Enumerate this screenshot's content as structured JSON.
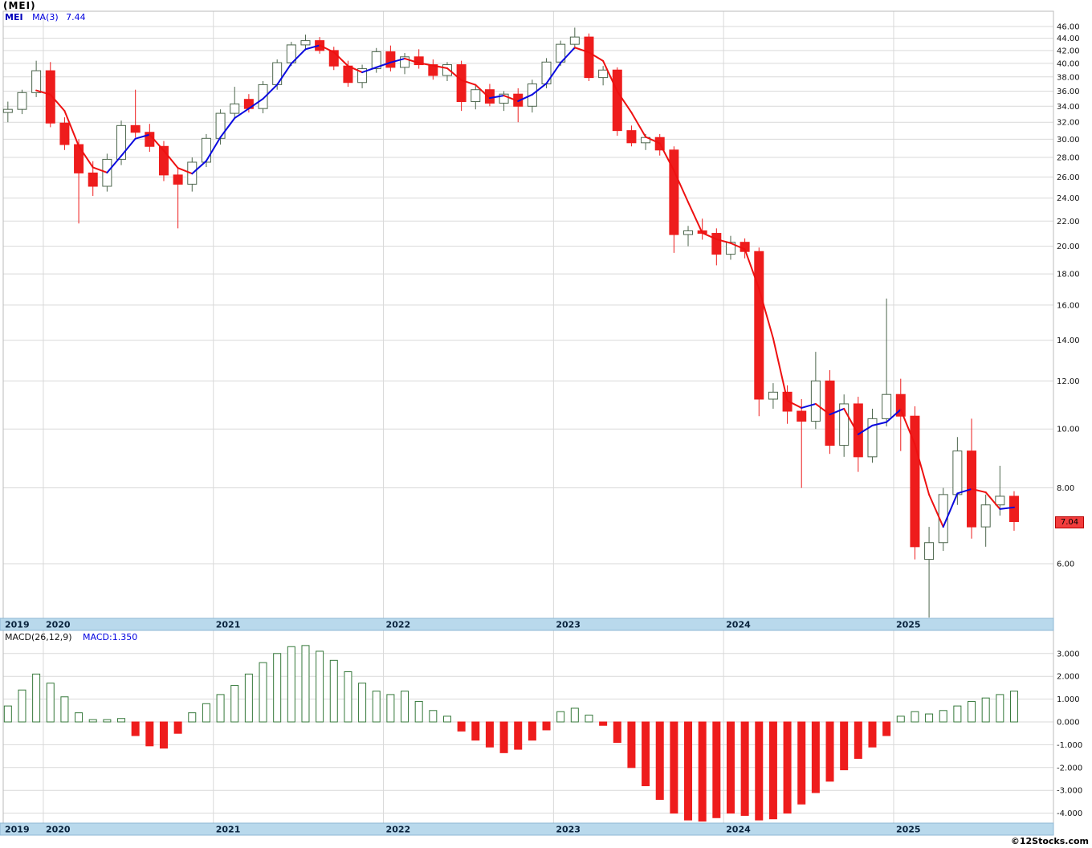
{
  "header": {
    "title": "(MEI)",
    "symbol_label": "MEI",
    "ma_label": "MA(3)",
    "ma_value": "7.44"
  },
  "macd_header": {
    "label": "MACD(26,12,9)",
    "value": "MACD:1.350"
  },
  "footer": {
    "watermark": "©12Stocks.com"
  },
  "chart_data": {
    "type": "candlestick",
    "symbol": "MEI",
    "interval": "monthly",
    "current_price": "7.04",
    "ma_period": 3,
    "price_axis": {
      "scale": "log",
      "tick_labels": [
        "46.00",
        "44.00",
        "42.00",
        "40.00",
        "38.00",
        "36.00",
        "34.00",
        "32.00",
        "30.00",
        "28.00",
        "26.00",
        "24.00",
        "22.00",
        "20.00",
        "18.00",
        "16.00",
        "14.00",
        "12.00",
        "10.00",
        "8.00",
        "6.00"
      ]
    },
    "years": [
      {
        "label": "2019",
        "start": 0
      },
      {
        "label": "2020",
        "start": 3
      },
      {
        "label": "2021",
        "start": 15
      },
      {
        "label": "2022",
        "start": 27
      },
      {
        "label": "2023",
        "start": 39
      },
      {
        "label": "2024",
        "start": 51
      },
      {
        "label": "2025",
        "start": 63
      }
    ],
    "candles": [
      [
        33.2,
        34.6,
        32.0,
        33.6
      ],
      [
        33.6,
        36.2,
        33.0,
        35.8
      ],
      [
        35.8,
        40.4,
        35.2,
        38.9
      ],
      [
        38.9,
        40.2,
        31.4,
        31.9
      ],
      [
        31.9,
        32.6,
        28.8,
        29.4
      ],
      [
        29.4,
        30.0,
        21.8,
        26.4
      ],
      [
        26.4,
        27.6,
        24.2,
        25.1
      ],
      [
        25.1,
        28.4,
        24.6,
        27.8
      ],
      [
        27.8,
        32.2,
        27.2,
        31.6
      ],
      [
        31.6,
        36.2,
        30.2,
        30.8
      ],
      [
        30.8,
        31.8,
        28.6,
        29.2
      ],
      [
        29.2,
        29.8,
        25.6,
        26.2
      ],
      [
        26.2,
        26.9,
        21.4,
        25.3
      ],
      [
        25.3,
        28.0,
        24.6,
        27.5
      ],
      [
        27.5,
        30.6,
        27.0,
        30.1
      ],
      [
        30.1,
        33.6,
        29.4,
        33.1
      ],
      [
        33.1,
        36.6,
        32.6,
        34.3
      ],
      [
        34.9,
        35.6,
        33.2,
        33.7
      ],
      [
        33.7,
        37.4,
        33.1,
        36.9
      ],
      [
        36.9,
        40.6,
        36.2,
        40.1
      ],
      [
        40.1,
        43.4,
        39.6,
        42.9
      ],
      [
        42.9,
        44.6,
        42.0,
        43.6
      ],
      [
        43.6,
        44.2,
        41.5,
        42.0
      ],
      [
        42.0,
        42.6,
        39.0,
        39.6
      ],
      [
        39.6,
        40.4,
        36.6,
        37.2
      ],
      [
        37.2,
        39.8,
        36.4,
        39.2
      ],
      [
        39.2,
        42.4,
        38.6,
        41.8
      ],
      [
        41.8,
        42.8,
        38.8,
        39.4
      ],
      [
        39.4,
        41.6,
        38.4,
        41.0
      ],
      [
        41.0,
        42.2,
        39.2,
        39.8
      ],
      [
        39.8,
        40.6,
        37.6,
        38.2
      ],
      [
        38.2,
        40.2,
        37.4,
        39.8
      ],
      [
        39.8,
        40.4,
        33.4,
        34.6
      ],
      [
        34.6,
        36.8,
        33.6,
        36.2
      ],
      [
        36.2,
        37.0,
        34.0,
        34.4
      ],
      [
        34.4,
        36.0,
        33.4,
        35.6
      ],
      [
        35.6,
        36.4,
        32.0,
        34.0
      ],
      [
        34.0,
        37.6,
        33.2,
        37.0
      ],
      [
        37.0,
        40.8,
        36.4,
        40.2
      ],
      [
        40.2,
        43.6,
        39.6,
        43.0
      ],
      [
        43.0,
        45.8,
        42.2,
        44.2
      ],
      [
        44.2,
        44.8,
        37.4,
        37.9
      ],
      [
        37.9,
        39.6,
        36.8,
        39.0
      ],
      [
        39.0,
        39.4,
        30.4,
        31.0
      ],
      [
        31.0,
        31.6,
        29.2,
        29.6
      ],
      [
        29.6,
        30.6,
        28.8,
        30.2
      ],
      [
        30.2,
        30.6,
        28.2,
        28.8
      ],
      [
        28.8,
        29.2,
        19.5,
        20.9
      ],
      [
        20.9,
        21.6,
        20.0,
        21.2
      ],
      [
        21.2,
        22.2,
        20.5,
        21.0
      ],
      [
        21.0,
        21.4,
        18.6,
        19.4
      ],
      [
        19.4,
        20.8,
        19.0,
        20.3
      ],
      [
        20.3,
        20.6,
        19.1,
        19.6
      ],
      [
        19.6,
        19.9,
        10.5,
        11.2
      ],
      [
        11.2,
        11.9,
        10.8,
        11.5
      ],
      [
        11.5,
        11.8,
        10.2,
        10.7
      ],
      [
        10.7,
        11.2,
        8.0,
        10.3
      ],
      [
        10.3,
        13.4,
        10.0,
        12.0
      ],
      [
        12.0,
        12.5,
        9.1,
        9.4
      ],
      [
        9.4,
        11.4,
        9.0,
        11.0
      ],
      [
        11.0,
        11.3,
        8.5,
        9.0
      ],
      [
        9.0,
        10.8,
        8.8,
        10.4
      ],
      [
        10.4,
        16.4,
        10.1,
        11.4
      ],
      [
        11.4,
        12.1,
        9.2,
        10.5
      ],
      [
        10.5,
        10.9,
        6.1,
        6.4
      ],
      [
        6.1,
        6.9,
        4.85,
        6.5
      ],
      [
        6.5,
        8.0,
        6.3,
        7.8
      ],
      [
        7.8,
        9.7,
        7.5,
        9.2
      ],
      [
        9.2,
        10.4,
        6.6,
        6.9
      ],
      [
        6.9,
        7.8,
        6.4,
        7.5
      ],
      [
        7.5,
        8.7,
        7.2,
        7.75
      ],
      [
        7.75,
        7.9,
        6.8,
        7.04
      ]
    ],
    "macd": {
      "type": "bar",
      "params": "26,12,9",
      "last_value": 1.35,
      "tick_labels": [
        "3.000",
        "2.000",
        "1.000",
        "0.000",
        "-1.000",
        "-2.000",
        "-3.000",
        "-4.000"
      ],
      "values": [
        0.7,
        1.4,
        2.1,
        1.7,
        1.1,
        0.4,
        0.1,
        0.1,
        0.15,
        -0.6,
        -1.05,
        -1.15,
        -0.5,
        0.4,
        0.8,
        1.2,
        1.6,
        2.1,
        2.6,
        3.0,
        3.3,
        3.35,
        3.1,
        2.7,
        2.2,
        1.7,
        1.35,
        1.2,
        1.35,
        0.9,
        0.5,
        0.25,
        -0.4,
        -0.8,
        -1.1,
        -1.35,
        -1.2,
        -0.8,
        -0.35,
        0.45,
        0.6,
        0.3,
        -0.15,
        -0.9,
        -2.0,
        -2.8,
        -3.4,
        -4.0,
        -4.3,
        -4.35,
        -4.2,
        -4.0,
        -4.1,
        -4.3,
        -4.25,
        -4.0,
        -3.6,
        -3.1,
        -2.6,
        -2.1,
        -1.6,
        -1.1,
        -0.6,
        0.25,
        0.45,
        0.35,
        0.5,
        0.7,
        0.9,
        1.05,
        1.2,
        1.35
      ]
    },
    "colors": {
      "down": "#ee1c1c",
      "up_fill": "#ffffff",
      "up_outline": "#4d664d",
      "ma_up": "#0a0adf",
      "ma_down": "#ee1111",
      "grid": "#d9d9d9",
      "panel_border": "#bbbbbb",
      "band_bg": "#b9d9ec",
      "band_border": "#8fb8d4",
      "band_text": "#09233d",
      "macd_pos_outline": "#35783a",
      "axis_text": "#111111",
      "tag_bg": "#f23c3c"
    }
  }
}
